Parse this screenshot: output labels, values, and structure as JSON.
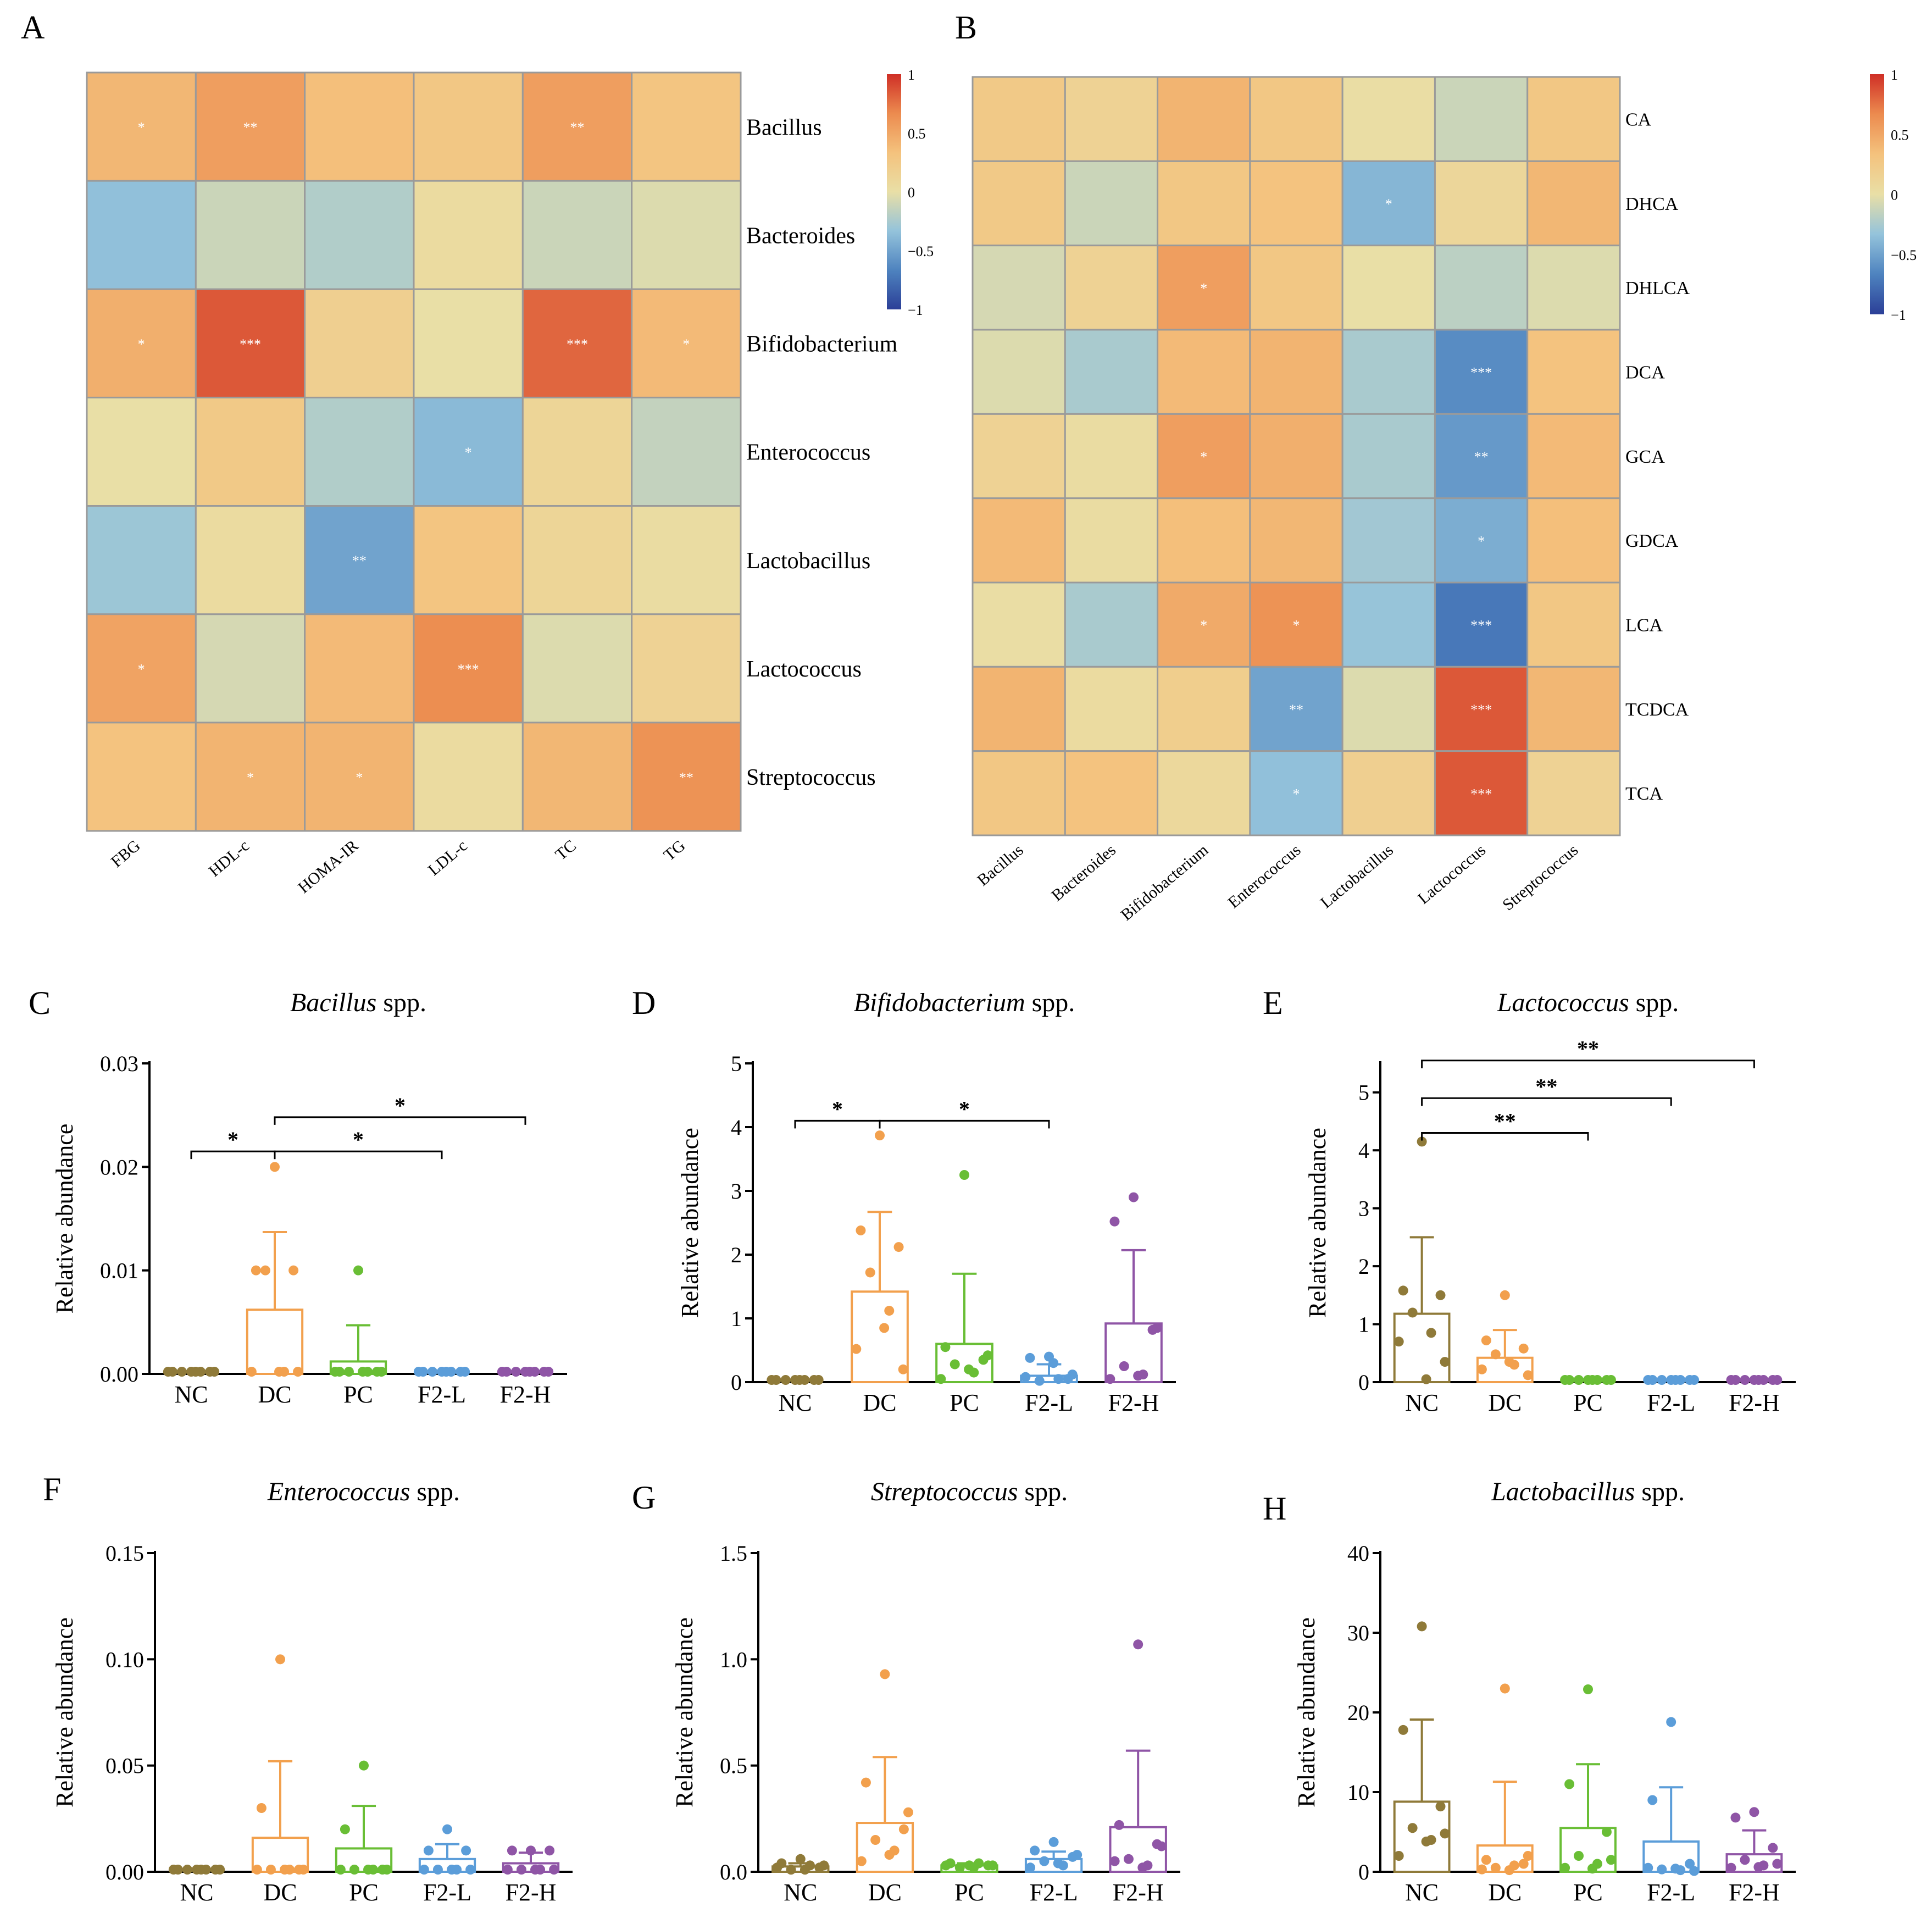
{
  "palette": {
    "heat_scale": [
      "#2b3f97",
      "#4e83bf",
      "#94c3db",
      "#e9dfa6",
      "#f4c27d",
      "#ec8b4f",
      "#cf2f26"
    ],
    "groups": {
      "NC": "#8f7a39",
      "DC": "#f2a04d",
      "PC": "#69be35",
      "F2-L": "#5b9dd9",
      "F2-H": "#8f55a6"
    },
    "axis": "#000000"
  },
  "chart_data": [
    {
      "panel": "A",
      "type": "heatmap",
      "rows": [
        "Bacillus",
        "Bacteroides",
        "Bifidobacterium",
        "Enterococcus",
        "Lactobacillus",
        "Lactococcus",
        "Streptococcus"
      ],
      "cols": [
        "FBG",
        "HDL-c",
        "HOMA-IR",
        "LDL-c",
        "TC",
        "TG"
      ],
      "values": [
        [
          0.4,
          0.55,
          0.35,
          0.28,
          0.55,
          0.3
        ],
        [
          -0.35,
          -0.12,
          -0.22,
          0.05,
          -0.12,
          -0.05
        ],
        [
          0.45,
          0.85,
          0.18,
          0.0,
          0.8,
          0.38
        ],
        [
          0.0,
          0.25,
          -0.22,
          -0.38,
          0.12,
          -0.15
        ],
        [
          -0.3,
          0.05,
          -0.5,
          0.3,
          0.12,
          0.03
        ],
        [
          0.52,
          -0.08,
          0.38,
          0.65,
          -0.05,
          0.15
        ],
        [
          0.32,
          0.42,
          0.42,
          0.05,
          0.4,
          0.62
        ]
      ],
      "stars": [
        [
          "*",
          "**",
          "",
          "",
          "**",
          ""
        ],
        [
          "",
          "",
          "",
          "",
          "",
          ""
        ],
        [
          "*",
          "***",
          "",
          "",
          "***",
          "*"
        ],
        [
          "",
          "",
          "",
          "*",
          "",
          ""
        ],
        [
          "",
          "",
          "**",
          "",
          "",
          ""
        ],
        [
          "*",
          "",
          "",
          "***",
          "",
          ""
        ],
        [
          "",
          "*",
          "*",
          "",
          "",
          "**"
        ]
      ],
      "colorbar": {
        "range": [
          -1,
          1
        ],
        "ticks": [
          "1",
          "0.5",
          "0",
          "−0.5",
          "−1"
        ]
      }
    },
    {
      "panel": "B",
      "type": "heatmap",
      "rows": [
        "CA",
        "DHCA",
        "DHLCA",
        "DCA",
        "GCA",
        "GDCA",
        "LCA",
        "TCDCA",
        "TCA"
      ],
      "cols": [
        "Bacillus",
        "Bacteroides",
        "Bifidobacterium",
        "Enterococcus",
        "Lactobacillus",
        "Lactococcus",
        "Streptococcus"
      ],
      "values": [
        [
          0.25,
          0.15,
          0.42,
          0.28,
          0.02,
          -0.12,
          0.28
        ],
        [
          0.25,
          -0.12,
          0.28,
          0.32,
          -0.4,
          0.1,
          0.4
        ],
        [
          -0.08,
          0.15,
          0.55,
          0.28,
          0.0,
          -0.18,
          -0.05
        ],
        [
          -0.05,
          -0.25,
          0.38,
          0.42,
          -0.25,
          -0.62,
          0.32
        ],
        [
          0.15,
          0.03,
          0.55,
          0.45,
          -0.25,
          -0.55,
          0.38
        ],
        [
          0.38,
          0.03,
          0.35,
          0.4,
          -0.28,
          -0.45,
          0.35
        ],
        [
          0.02,
          -0.25,
          0.48,
          0.62,
          -0.32,
          -0.72,
          0.28
        ],
        [
          0.42,
          0.05,
          0.2,
          -0.5,
          -0.05,
          0.85,
          0.4
        ],
        [
          0.28,
          0.32,
          0.08,
          -0.35,
          0.18,
          0.85,
          0.15
        ]
      ],
      "stars": [
        [
          "",
          "",
          "",
          "",
          "",
          "",
          ""
        ],
        [
          "",
          "",
          "",
          "",
          "*",
          "",
          ""
        ],
        [
          "",
          "",
          "*",
          "",
          "",
          "",
          ""
        ],
        [
          "",
          "",
          "",
          "",
          "",
          "***",
          ""
        ],
        [
          "",
          "",
          "*",
          "",
          "",
          "**",
          ""
        ],
        [
          "",
          "",
          "",
          "",
          "",
          "*",
          ""
        ],
        [
          "",
          "",
          "*",
          "*",
          "",
          "***",
          ""
        ],
        [
          "",
          "",
          "",
          "**",
          "",
          "***",
          ""
        ],
        [
          "",
          "",
          "",
          "*",
          "",
          "***",
          ""
        ]
      ],
      "colorbar": {
        "range": [
          -1,
          1
        ],
        "ticks": [
          "1",
          "0.5",
          "0",
          "−0.5",
          "−1"
        ]
      }
    },
    {
      "panel": "C",
      "type": "bar",
      "title_italic": "Bacillus",
      "title_rest": " spp.",
      "ylabel": "Relative abundance",
      "ylim": [
        0,
        0.03
      ],
      "yticks": [
        0,
        0.01,
        0.02,
        0.03
      ],
      "ytick_labels": [
        "0.00",
        "0.01",
        "0.02",
        "0.03"
      ],
      "categories": [
        "NC",
        "DC",
        "PC",
        "F2-L",
        "F2-H"
      ],
      "means": [
        0,
        0.0062,
        0.0012,
        0,
        0
      ],
      "err": [
        0,
        0.0075,
        0.0035,
        0,
        0
      ],
      "points": [
        [
          0,
          0,
          0,
          0,
          0,
          0,
          0,
          0
        ],
        [
          0.02,
          0.01,
          0.01,
          0.01,
          0,
          0,
          0,
          0
        ],
        [
          0.01,
          0,
          0,
          0,
          0,
          0,
          0,
          0
        ],
        [
          0,
          0,
          0,
          0,
          0,
          0,
          0,
          0
        ],
        [
          0,
          0,
          0,
          0,
          0,
          0,
          0,
          0
        ]
      ],
      "brackets": [
        {
          "from": 0,
          "to": 1,
          "label": "*",
          "y": 0.0215
        },
        {
          "from": 1,
          "to": 3,
          "label": "*",
          "y": 0.0215
        },
        {
          "from": 1,
          "to": 4,
          "label": "*",
          "y": 0.0248
        }
      ]
    },
    {
      "panel": "D",
      "type": "bar",
      "title_italic": "Bifidobacterium",
      "title_rest": " spp.",
      "ylabel": "Relative abundance",
      "ylim": [
        0,
        5
      ],
      "yticks": [
        0,
        1,
        2,
        3,
        4,
        5
      ],
      "ytick_labels": [
        "0",
        "1",
        "2",
        "3",
        "4",
        "5"
      ],
      "categories": [
        "NC",
        "DC",
        "PC",
        "F2-L",
        "F2-H"
      ],
      "means": [
        0,
        1.42,
        0.6,
        0.1,
        0.92
      ],
      "err": [
        0,
        1.25,
        1.1,
        0.18,
        1.15
      ],
      "points": [
        [
          0,
          0,
          0,
          0,
          0,
          0,
          0,
          0
        ],
        [
          3.87,
          2.38,
          2.12,
          1.72,
          1.12,
          0.52,
          0.2,
          0.85
        ],
        [
          3.25,
          0.55,
          0.35,
          0.28,
          0.15,
          0.05,
          0.42,
          0.2
        ],
        [
          0.4,
          0.38,
          0.05,
          0.02,
          0.05,
          0.08,
          0.12,
          0.3
        ],
        [
          2.9,
          2.52,
          0.82,
          0.25,
          0.12,
          0.05,
          0.85,
          0.1
        ]
      ],
      "brackets": [
        {
          "from": 0,
          "to": 1,
          "label": "*",
          "y": 4.1
        },
        {
          "from": 1,
          "to": 3,
          "label": "*",
          "y": 4.1
        }
      ]
    },
    {
      "panel": "E",
      "type": "bar",
      "title_italic": "Lactococcus",
      "title_rest": " spp.",
      "ylabel": "Relative abundance",
      "ylim": [
        0,
        5.5
      ],
      "yticks": [
        0,
        1,
        2,
        3,
        4,
        5
      ],
      "ytick_labels": [
        "0",
        "1",
        "2",
        "3",
        "4",
        "5"
      ],
      "categories": [
        "NC",
        "DC",
        "PC",
        "F2-L",
        "F2-H"
      ],
      "means": [
        1.18,
        0.42,
        0,
        0,
        0
      ],
      "err": [
        1.32,
        0.48,
        0,
        0,
        0
      ],
      "points": [
        [
          4.15,
          1.58,
          1.5,
          1.2,
          0.85,
          0.7,
          0.35,
          0.05
        ],
        [
          1.5,
          0.72,
          0.58,
          0.48,
          0.3,
          0.22,
          0.12,
          0.35
        ],
        [
          0,
          0,
          0,
          0,
          0,
          0,
          0,
          0
        ],
        [
          0,
          0,
          0,
          0,
          0,
          0,
          0,
          0
        ],
        [
          0,
          0,
          0,
          0,
          0,
          0,
          0,
          0
        ]
      ],
      "brackets": [
        {
          "from": 0,
          "to": 2,
          "label": "**",
          "y": 4.3
        },
        {
          "from": 0,
          "to": 3,
          "label": "**",
          "y": 4.9
        },
        {
          "from": 0,
          "to": 4,
          "label": "**",
          "y": 5.55
        }
      ]
    },
    {
      "panel": "F",
      "type": "bar",
      "title_italic": "Enterococcus",
      "title_rest": " spp.",
      "ylabel": "Relative abundance",
      "ylim": [
        0,
        0.15
      ],
      "yticks": [
        0,
        0.05,
        0.1,
        0.15
      ],
      "ytick_labels": [
        "0.00",
        "0.05",
        "0.10",
        "0.15"
      ],
      "categories": [
        "NC",
        "DC",
        "PC",
        "F2-L",
        "F2-H"
      ],
      "means": [
        0,
        0.016,
        0.011,
        0.006,
        0.004
      ],
      "err": [
        0,
        0.036,
        0.02,
        0.007,
        0.005
      ],
      "points": [
        [
          0,
          0,
          0,
          0,
          0,
          0,
          0,
          0
        ],
        [
          0.1,
          0.03,
          0,
          0,
          0,
          0,
          0,
          0
        ],
        [
          0.05,
          0.02,
          0,
          0,
          0,
          0,
          0,
          0
        ],
        [
          0.02,
          0.01,
          0.01,
          0,
          0,
          0,
          0,
          0
        ],
        [
          0.01,
          0.01,
          0.01,
          0,
          0,
          0,
          0,
          0
        ]
      ],
      "brackets": []
    },
    {
      "panel": "G",
      "type": "bar",
      "title_italic": "Streptococcus",
      "title_rest": " spp.",
      "ylabel": "Relative abundance",
      "ylim": [
        0,
        1.5
      ],
      "yticks": [
        0,
        0.5,
        1.0,
        1.5
      ],
      "ytick_labels": [
        "0.0",
        "0.5",
        "1.0",
        "1.5"
      ],
      "categories": [
        "NC",
        "DC",
        "PC",
        "F2-L",
        "F2-H"
      ],
      "means": [
        0.025,
        0.23,
        0.03,
        0.06,
        0.21
      ],
      "err": [
        0.015,
        0.31,
        0.01,
        0.035,
        0.36
      ],
      "points": [
        [
          0.06,
          0.04,
          0.02,
          0.01,
          0.03,
          0.02,
          0.03,
          0.01
        ],
        [
          0.93,
          0.42,
          0.2,
          0.15,
          0.1,
          0.05,
          0.28,
          0.08
        ],
        [
          0.03,
          0.04,
          0.03,
          0.02,
          0.04,
          0.03,
          0.03,
          0.02
        ],
        [
          0.14,
          0.1,
          0.07,
          0.05,
          0.03,
          0.02,
          0.08,
          0.04
        ],
        [
          1.07,
          0.22,
          0.13,
          0.06,
          0.03,
          0.05,
          0.12,
          0.02
        ]
      ],
      "brackets": []
    },
    {
      "panel": "H",
      "type": "bar",
      "title_italic": "Lactobacillus",
      "title_rest": " spp.",
      "ylabel": "Relative abundance",
      "ylim": [
        0,
        40
      ],
      "yticks": [
        0,
        10,
        20,
        30,
        40
      ],
      "ytick_labels": [
        "0",
        "10",
        "20",
        "30",
        "40"
      ],
      "categories": [
        "NC",
        "DC",
        "PC",
        "F2-L",
        "F2-H"
      ],
      "means": [
        8.8,
        3.3,
        5.5,
        3.8,
        2.2
      ],
      "err": [
        10.3,
        8.0,
        8.0,
        6.8,
        3.0
      ],
      "points": [
        [
          30.8,
          17.8,
          8.2,
          5.5,
          4.0,
          2.0,
          4.8,
          3.8
        ],
        [
          23.0,
          1.5,
          1.0,
          0.5,
          0.8,
          0.3,
          2.0,
          0.2
        ],
        [
          22.9,
          11.0,
          5.0,
          2.0,
          1.0,
          0.5,
          1.5,
          0.4
        ],
        [
          18.8,
          9.0,
          1.0,
          0.3,
          0.2,
          0.5,
          0.1,
          0.4
        ],
        [
          7.5,
          6.8,
          3.0,
          1.5,
          0.8,
          0.5,
          1.0,
          0.6
        ]
      ],
      "brackets": []
    }
  ]
}
